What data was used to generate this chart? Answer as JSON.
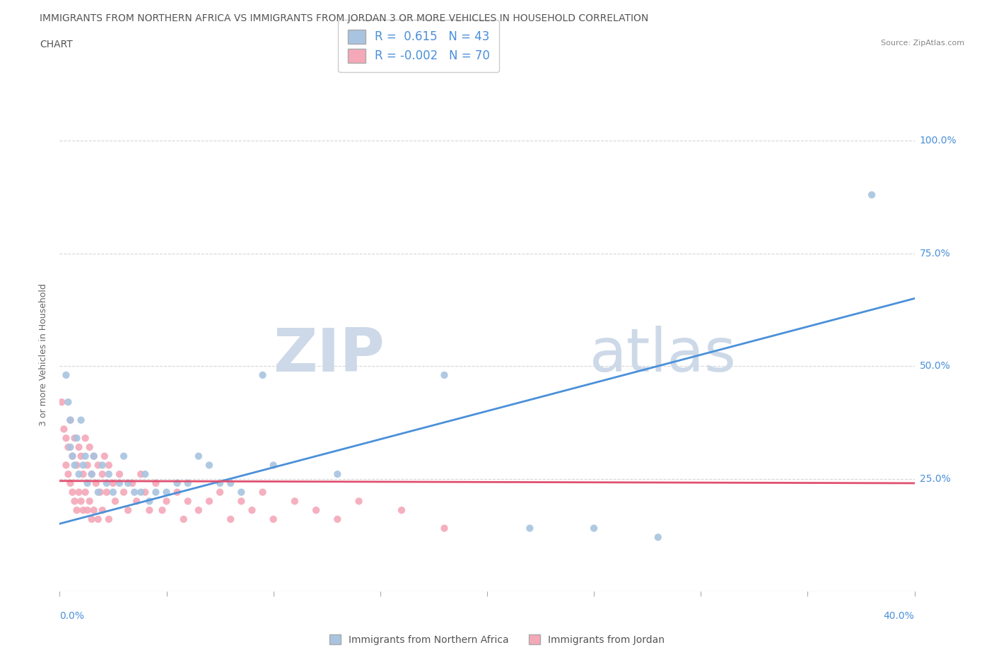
{
  "title_line1": "IMMIGRANTS FROM NORTHERN AFRICA VS IMMIGRANTS FROM JORDAN 3 OR MORE VEHICLES IN HOUSEHOLD CORRELATION",
  "title_line2": "CHART",
  "source": "Source: ZipAtlas.com",
  "ylabel": "3 or more Vehicles in Household",
  "legend_label1": "Immigrants from Northern Africa",
  "legend_label2": "Immigrants from Jordan",
  "R1": 0.615,
  "N1": 43,
  "R2": -0.002,
  "N2": 70,
  "color_blue": "#a8c4e0",
  "color_pink": "#f4a8b8",
  "color_line_blue": "#4a90d9",
  "color_line_pink": "#e05070",
  "watermark_zip": "ZIP",
  "watermark_atlas": "atlas",
  "watermark_color": "#cdd9e8",
  "background_color": "#ffffff",
  "grid_color": "#cccccc",
  "title_color": "#555555",
  "axis_label_color": "#4a90d9",
  "blue_line_y0": 15.0,
  "blue_line_y1": 65.0,
  "pink_line_y0": 24.5,
  "pink_line_y1": 24.0,
  "blue_scatter": [
    [
      0.3,
      48.0
    ],
    [
      0.4,
      42.0
    ],
    [
      0.5,
      38.0
    ],
    [
      0.5,
      32.0
    ],
    [
      0.6,
      30.0
    ],
    [
      0.7,
      28.0
    ],
    [
      0.8,
      34.0
    ],
    [
      0.9,
      26.0
    ],
    [
      1.0,
      38.0
    ],
    [
      1.1,
      28.0
    ],
    [
      1.2,
      30.0
    ],
    [
      1.3,
      24.0
    ],
    [
      1.5,
      26.0
    ],
    [
      1.6,
      30.0
    ],
    [
      1.8,
      22.0
    ],
    [
      2.0,
      28.0
    ],
    [
      2.2,
      24.0
    ],
    [
      2.3,
      26.0
    ],
    [
      2.5,
      22.0
    ],
    [
      2.8,
      24.0
    ],
    [
      3.0,
      30.0
    ],
    [
      3.2,
      24.0
    ],
    [
      3.5,
      22.0
    ],
    [
      3.8,
      22.0
    ],
    [
      4.0,
      26.0
    ],
    [
      4.2,
      20.0
    ],
    [
      4.5,
      22.0
    ],
    [
      5.0,
      22.0
    ],
    [
      5.5,
      24.0
    ],
    [
      6.0,
      24.0
    ],
    [
      6.5,
      30.0
    ],
    [
      7.0,
      28.0
    ],
    [
      7.5,
      24.0
    ],
    [
      8.0,
      24.0
    ],
    [
      8.5,
      22.0
    ],
    [
      9.5,
      48.0
    ],
    [
      10.0,
      28.0
    ],
    [
      13.0,
      26.0
    ],
    [
      18.0,
      48.0
    ],
    [
      22.0,
      14.0
    ],
    [
      25.0,
      14.0
    ],
    [
      28.0,
      12.0
    ],
    [
      38.0,
      88.0
    ]
  ],
  "pink_scatter": [
    [
      0.1,
      42.0
    ],
    [
      0.2,
      36.0
    ],
    [
      0.3,
      34.0
    ],
    [
      0.3,
      28.0
    ],
    [
      0.4,
      32.0
    ],
    [
      0.4,
      26.0
    ],
    [
      0.5,
      38.0
    ],
    [
      0.5,
      24.0
    ],
    [
      0.6,
      30.0
    ],
    [
      0.6,
      22.0
    ],
    [
      0.7,
      34.0
    ],
    [
      0.7,
      20.0
    ],
    [
      0.8,
      28.0
    ],
    [
      0.8,
      18.0
    ],
    [
      0.9,
      32.0
    ],
    [
      0.9,
      22.0
    ],
    [
      1.0,
      30.0
    ],
    [
      1.0,
      20.0
    ],
    [
      1.1,
      26.0
    ],
    [
      1.1,
      18.0
    ],
    [
      1.2,
      34.0
    ],
    [
      1.2,
      22.0
    ],
    [
      1.3,
      28.0
    ],
    [
      1.3,
      18.0
    ],
    [
      1.4,
      32.0
    ],
    [
      1.4,
      20.0
    ],
    [
      1.5,
      26.0
    ],
    [
      1.5,
      16.0
    ],
    [
      1.6,
      30.0
    ],
    [
      1.6,
      18.0
    ],
    [
      1.7,
      24.0
    ],
    [
      1.8,
      28.0
    ],
    [
      1.8,
      16.0
    ],
    [
      1.9,
      22.0
    ],
    [
      2.0,
      26.0
    ],
    [
      2.0,
      18.0
    ],
    [
      2.1,
      30.0
    ],
    [
      2.2,
      22.0
    ],
    [
      2.3,
      28.0
    ],
    [
      2.3,
      16.0
    ],
    [
      2.5,
      24.0
    ],
    [
      2.6,
      20.0
    ],
    [
      2.8,
      26.0
    ],
    [
      3.0,
      22.0
    ],
    [
      3.2,
      18.0
    ],
    [
      3.4,
      24.0
    ],
    [
      3.6,
      20.0
    ],
    [
      3.8,
      26.0
    ],
    [
      4.0,
      22.0
    ],
    [
      4.2,
      18.0
    ],
    [
      4.5,
      24.0
    ],
    [
      4.8,
      18.0
    ],
    [
      5.0,
      20.0
    ],
    [
      5.5,
      22.0
    ],
    [
      5.8,
      16.0
    ],
    [
      6.0,
      20.0
    ],
    [
      6.5,
      18.0
    ],
    [
      7.0,
      20.0
    ],
    [
      7.5,
      22.0
    ],
    [
      8.0,
      16.0
    ],
    [
      8.5,
      20.0
    ],
    [
      9.0,
      18.0
    ],
    [
      9.5,
      22.0
    ],
    [
      10.0,
      16.0
    ],
    [
      11.0,
      20.0
    ],
    [
      12.0,
      18.0
    ],
    [
      13.0,
      16.0
    ],
    [
      14.0,
      20.0
    ],
    [
      16.0,
      18.0
    ],
    [
      18.0,
      14.0
    ]
  ],
  "xmin": 0.0,
  "xmax": 40.0,
  "ymin": 0.0,
  "ymax": 105.0,
  "ytick_vals": [
    25,
    50,
    75,
    100
  ]
}
